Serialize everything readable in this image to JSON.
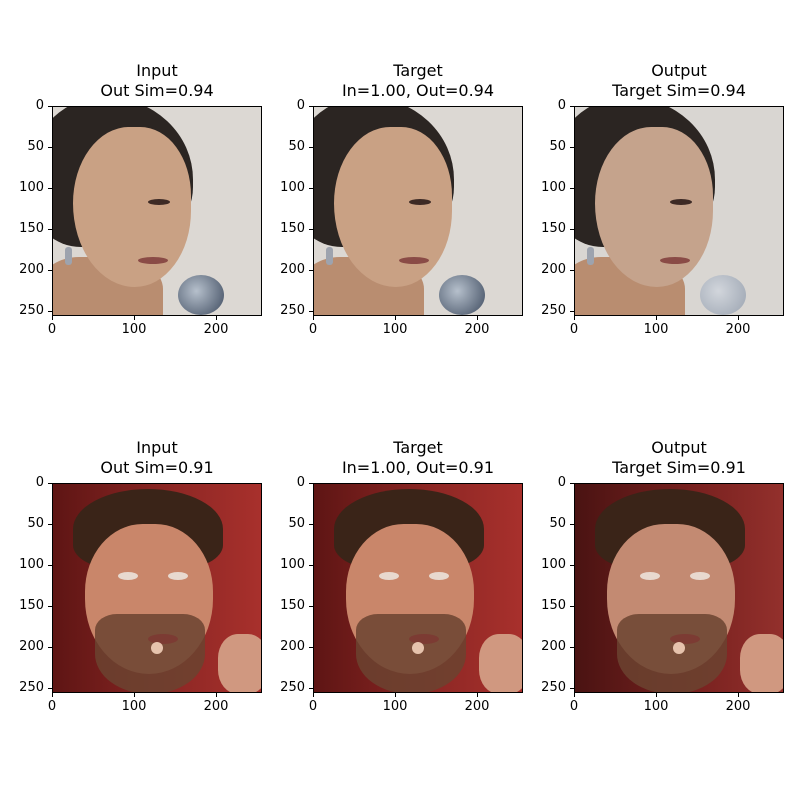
{
  "rows": [
    {
      "panels": [
        {
          "title_line1": "Input",
          "title_line2": "Out Sim=0.94"
        },
        {
          "title_line1": "Target",
          "title_line2": "In=1.00, Out=0.94"
        },
        {
          "title_line1": "Output",
          "title_line2": "Target Sim=0.94"
        }
      ]
    },
    {
      "panels": [
        {
          "title_line1": "Input",
          "title_line2": "Out Sim=0.91"
        },
        {
          "title_line1": "Target",
          "title_line2": "In=1.00, Out=0.91"
        },
        {
          "title_line1": "Output",
          "title_line2": "Target Sim=0.91"
        }
      ]
    }
  ],
  "axes": {
    "y_ticks": [
      "0",
      "50",
      "100",
      "150",
      "200",
      "250"
    ],
    "x_ticks": [
      "0",
      "100",
      "200"
    ]
  }
}
